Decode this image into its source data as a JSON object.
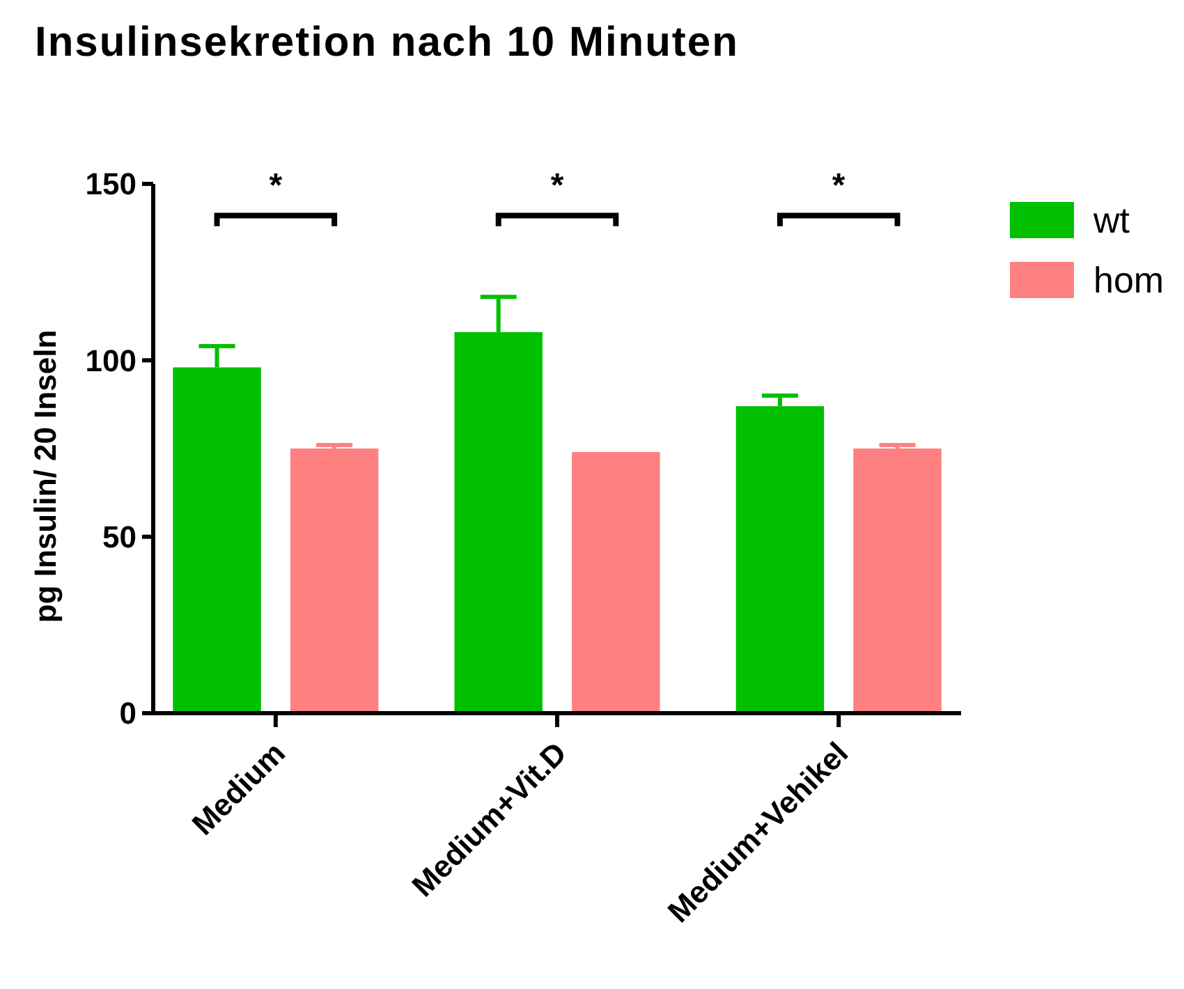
{
  "chart_data": {
    "type": "bar",
    "title": "Insulinsekretion nach 10 Minuten",
    "ylabel": "pg Insulin/ 20 Inseln",
    "categories": [
      "Medium",
      "Medium+Vit.D",
      "Medium+Vehikel"
    ],
    "series": [
      {
        "name": "wt",
        "color": "#00c000",
        "values": [
          98,
          108,
          87
        ],
        "errors": [
          [
            98,
            104
          ],
          [
            108,
            118
          ],
          [
            87,
            90
          ]
        ]
      },
      {
        "name": "hom",
        "color": "#ff8080",
        "values": [
          75,
          74,
          75
        ],
        "errors": [
          [
            75,
            76
          ],
          null,
          [
            75,
            76
          ]
        ]
      }
    ],
    "ylim": [
      0,
      150
    ],
    "yticks": [
      0,
      50,
      100,
      150
    ],
    "grid": false,
    "legend": "top right",
    "annotations": [
      "*",
      "*",
      "*"
    ]
  }
}
